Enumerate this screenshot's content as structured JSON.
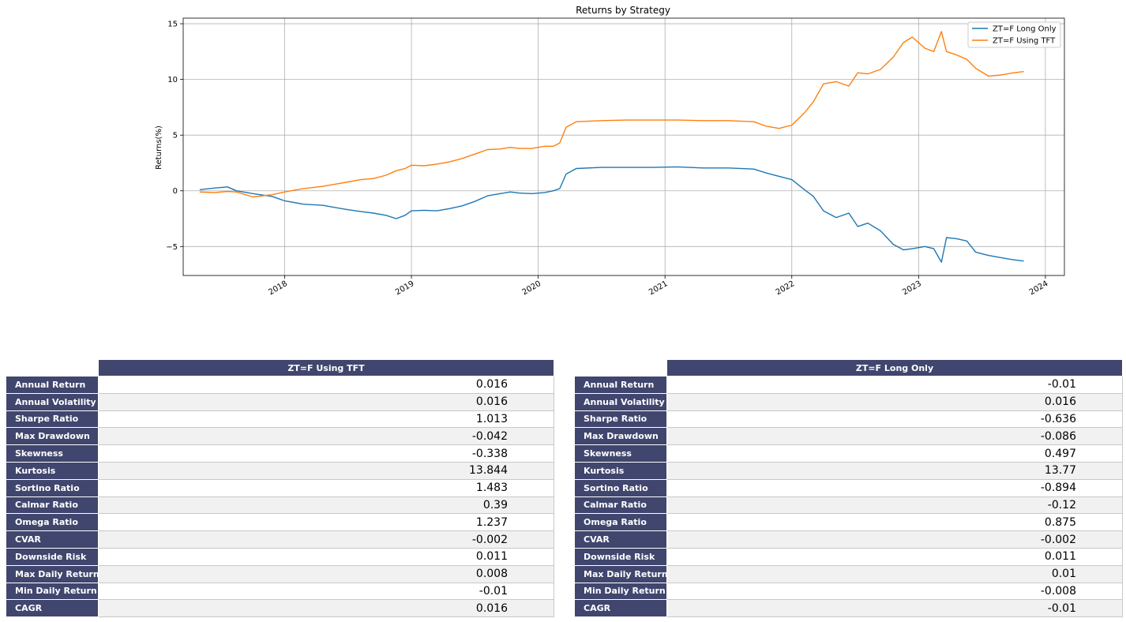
{
  "chart_data": {
    "type": "line",
    "title": "Returns by Strategy",
    "xlabel": "",
    "ylabel": "Returns(%)",
    "xlim": [
      2017.2,
      2024.15
    ],
    "ylim": [
      -7.6,
      15.5
    ],
    "xticks": [
      "2018",
      "2019",
      "2020",
      "2021",
      "2022",
      "2023",
      "2024"
    ],
    "xtick_values": [
      2018,
      2019,
      2020,
      2021,
      2022,
      2023,
      2024
    ],
    "yticks": [
      "15",
      "10",
      "5",
      "0",
      "−5"
    ],
    "ytick_values": [
      15,
      10,
      5,
      0,
      -5
    ],
    "grid": true,
    "legend_position": "top-right",
    "series": [
      {
        "name": "ZT=F Long Only",
        "color": "#1f77b4",
        "points": [
          [
            2017.33,
            0.1
          ],
          [
            2017.45,
            0.25
          ],
          [
            2017.55,
            0.35
          ],
          [
            2017.62,
            0.0
          ],
          [
            2017.75,
            -0.25
          ],
          [
            2017.9,
            -0.5
          ],
          [
            2018.0,
            -0.9
          ],
          [
            2018.15,
            -1.2
          ],
          [
            2018.3,
            -1.3
          ],
          [
            2018.4,
            -1.5
          ],
          [
            2018.5,
            -1.7
          ],
          [
            2018.6,
            -1.85
          ],
          [
            2018.7,
            -2.0
          ],
          [
            2018.8,
            -2.2
          ],
          [
            2018.88,
            -2.5
          ],
          [
            2018.95,
            -2.2
          ],
          [
            2019.0,
            -1.8
          ],
          [
            2019.1,
            -1.75
          ],
          [
            2019.2,
            -1.8
          ],
          [
            2019.3,
            -1.6
          ],
          [
            2019.4,
            -1.35
          ],
          [
            2019.5,
            -0.95
          ],
          [
            2019.6,
            -0.45
          ],
          [
            2019.7,
            -0.25
          ],
          [
            2019.78,
            -0.1
          ],
          [
            2019.85,
            -0.2
          ],
          [
            2019.95,
            -0.25
          ],
          [
            2020.05,
            -0.15
          ],
          [
            2020.12,
            0.0
          ],
          [
            2020.17,
            0.2
          ],
          [
            2020.22,
            1.5
          ],
          [
            2020.3,
            2.0
          ],
          [
            2020.5,
            2.1
          ],
          [
            2020.7,
            2.1
          ],
          [
            2020.9,
            2.1
          ],
          [
            2021.1,
            2.15
          ],
          [
            2021.3,
            2.05
          ],
          [
            2021.5,
            2.05
          ],
          [
            2021.7,
            1.95
          ],
          [
            2021.8,
            1.6
          ],
          [
            2021.9,
            1.3
          ],
          [
            2022.0,
            1.0
          ],
          [
            2022.1,
            0.1
          ],
          [
            2022.17,
            -0.5
          ],
          [
            2022.25,
            -1.8
          ],
          [
            2022.35,
            -2.4
          ],
          [
            2022.45,
            -2.0
          ],
          [
            2022.52,
            -3.2
          ],
          [
            2022.6,
            -2.9
          ],
          [
            2022.7,
            -3.6
          ],
          [
            2022.8,
            -4.8
          ],
          [
            2022.88,
            -5.3
          ],
          [
            2022.95,
            -5.2
          ],
          [
            2023.05,
            -5.0
          ],
          [
            2023.12,
            -5.2
          ],
          [
            2023.18,
            -6.4
          ],
          [
            2023.22,
            -4.2
          ],
          [
            2023.3,
            -4.3
          ],
          [
            2023.38,
            -4.5
          ],
          [
            2023.45,
            -5.5
          ],
          [
            2023.55,
            -5.8
          ],
          [
            2023.65,
            -6.0
          ],
          [
            2023.75,
            -6.2
          ],
          [
            2023.83,
            -6.3
          ]
        ]
      },
      {
        "name": "ZT=F Using TFT",
        "color": "#ff7f0e",
        "points": [
          [
            2017.33,
            -0.1
          ],
          [
            2017.45,
            -0.15
          ],
          [
            2017.55,
            -0.05
          ],
          [
            2017.62,
            -0.1
          ],
          [
            2017.75,
            -0.55
          ],
          [
            2017.9,
            -0.35
          ],
          [
            2018.0,
            -0.1
          ],
          [
            2018.15,
            0.2
          ],
          [
            2018.3,
            0.4
          ],
          [
            2018.4,
            0.6
          ],
          [
            2018.5,
            0.8
          ],
          [
            2018.6,
            1.0
          ],
          [
            2018.7,
            1.1
          ],
          [
            2018.8,
            1.4
          ],
          [
            2018.88,
            1.8
          ],
          [
            2018.95,
            2.0
          ],
          [
            2019.0,
            2.3
          ],
          [
            2019.1,
            2.25
          ],
          [
            2019.2,
            2.4
          ],
          [
            2019.3,
            2.6
          ],
          [
            2019.4,
            2.9
          ],
          [
            2019.5,
            3.3
          ],
          [
            2019.6,
            3.7
          ],
          [
            2019.7,
            3.75
          ],
          [
            2019.78,
            3.9
          ],
          [
            2019.85,
            3.8
          ],
          [
            2019.95,
            3.8
          ],
          [
            2020.05,
            4.0
          ],
          [
            2020.12,
            4.0
          ],
          [
            2020.17,
            4.3
          ],
          [
            2020.22,
            5.7
          ],
          [
            2020.3,
            6.2
          ],
          [
            2020.5,
            6.3
          ],
          [
            2020.7,
            6.35
          ],
          [
            2020.9,
            6.35
          ],
          [
            2021.1,
            6.35
          ],
          [
            2021.3,
            6.3
          ],
          [
            2021.5,
            6.3
          ],
          [
            2021.7,
            6.2
          ],
          [
            2021.8,
            5.8
          ],
          [
            2021.9,
            5.6
          ],
          [
            2022.0,
            5.9
          ],
          [
            2022.1,
            7.0
          ],
          [
            2022.17,
            8.0
          ],
          [
            2022.25,
            9.6
          ],
          [
            2022.35,
            9.8
          ],
          [
            2022.45,
            9.4
          ],
          [
            2022.52,
            10.6
          ],
          [
            2022.6,
            10.5
          ],
          [
            2022.7,
            10.9
          ],
          [
            2022.8,
            12.0
          ],
          [
            2022.88,
            13.3
          ],
          [
            2022.95,
            13.8
          ],
          [
            2023.05,
            12.8
          ],
          [
            2023.12,
            12.5
          ],
          [
            2023.18,
            14.3
          ],
          [
            2023.22,
            12.5
          ],
          [
            2023.3,
            12.2
          ],
          [
            2023.38,
            11.8
          ],
          [
            2023.45,
            11.0
          ],
          [
            2023.55,
            10.3
          ],
          [
            2023.65,
            10.4
          ],
          [
            2023.75,
            10.6
          ],
          [
            2023.83,
            10.7
          ]
        ]
      }
    ]
  },
  "tables": [
    {
      "header": "ZT=F Using TFT",
      "rows": [
        {
          "label": "Annual Return",
          "value": "0.016"
        },
        {
          "label": "Annual Volatility",
          "value": "0.016"
        },
        {
          "label": "Sharpe Ratio",
          "value": "1.013"
        },
        {
          "label": "Max Drawdown",
          "value": "-0.042"
        },
        {
          "label": "Skewness",
          "value": "-0.338"
        },
        {
          "label": "Kurtosis",
          "value": "13.844"
        },
        {
          "label": "Sortino Ratio",
          "value": "1.483"
        },
        {
          "label": "Calmar Ratio",
          "value": "0.39"
        },
        {
          "label": "Omega Ratio",
          "value": "1.237"
        },
        {
          "label": "CVAR",
          "value": "-0.002"
        },
        {
          "label": "Downside Risk",
          "value": "0.011"
        },
        {
          "label": "Max Daily Return",
          "value": "0.008"
        },
        {
          "label": "Min Daily Return",
          "value": "-0.01"
        },
        {
          "label": "CAGR",
          "value": "0.016"
        }
      ]
    },
    {
      "header": "ZT=F Long Only",
      "rows": [
        {
          "label": "Annual Return",
          "value": "-0.01"
        },
        {
          "label": "Annual Volatility",
          "value": "0.016"
        },
        {
          "label": "Sharpe Ratio",
          "value": "-0.636"
        },
        {
          "label": "Max Drawdown",
          "value": "-0.086"
        },
        {
          "label": "Skewness",
          "value": "0.497"
        },
        {
          "label": "Kurtosis",
          "value": "13.77"
        },
        {
          "label": "Sortino Ratio",
          "value": "-0.894"
        },
        {
          "label": "Calmar Ratio",
          "value": "-0.12"
        },
        {
          "label": "Omega Ratio",
          "value": "0.875"
        },
        {
          "label": "CVAR",
          "value": "-0.002"
        },
        {
          "label": "Downside Risk",
          "value": "0.011"
        },
        {
          "label": "Max Daily Return",
          "value": "0.01"
        },
        {
          "label": "Min Daily Return",
          "value": "-0.008"
        },
        {
          "label": "CAGR",
          "value": "-0.01"
        }
      ]
    }
  ]
}
